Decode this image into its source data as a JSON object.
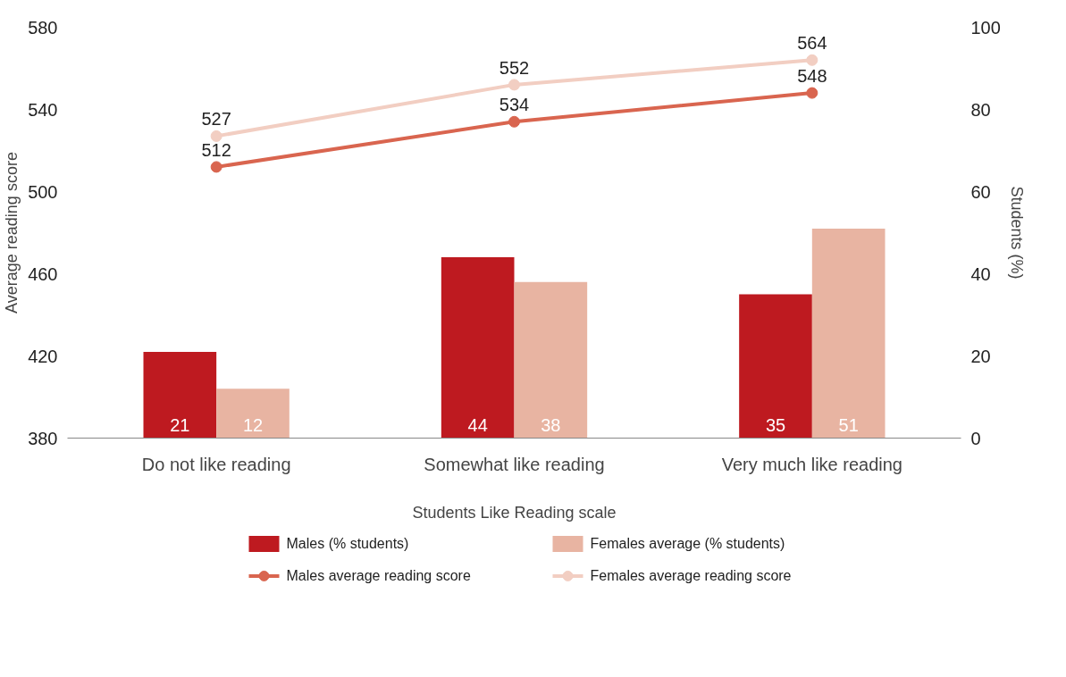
{
  "chart_data": {
    "type": "bar",
    "xlabel": "Students Like Reading scale",
    "ylabel": "Average reading score",
    "y2label": "Students (%)",
    "categories": [
      "Do not like reading",
      "Somewhat like reading",
      "Very much like reading"
    ],
    "series": [
      {
        "name": "Males (% students)",
        "axis": "y2",
        "color": "#be1a20",
        "values": [
          21,
          44,
          35
        ]
      },
      {
        "name": "Females average (% students)",
        "axis": "y2",
        "color": "#e8b4a2",
        "values": [
          12,
          38,
          51
        ]
      },
      {
        "name": "Males average reading score",
        "type": "line",
        "axis": "y",
        "color": "#d9654f",
        "values": [
          512,
          534,
          548
        ]
      },
      {
        "name": "Females average reading score",
        "type": "line",
        "axis": "y",
        "color": "#f2cec2",
        "values": [
          527,
          552,
          564
        ]
      }
    ],
    "ylim": [
      380,
      580
    ],
    "yticks": [
      380,
      420,
      460,
      500,
      540,
      580
    ],
    "y2lim": [
      0,
      100
    ],
    "y2ticks": [
      0,
      20,
      40,
      60,
      80,
      100
    ],
    "data_labels": true,
    "grid": false,
    "legend": "bottom",
    "marker": "circle",
    "line_style": "solid"
  }
}
